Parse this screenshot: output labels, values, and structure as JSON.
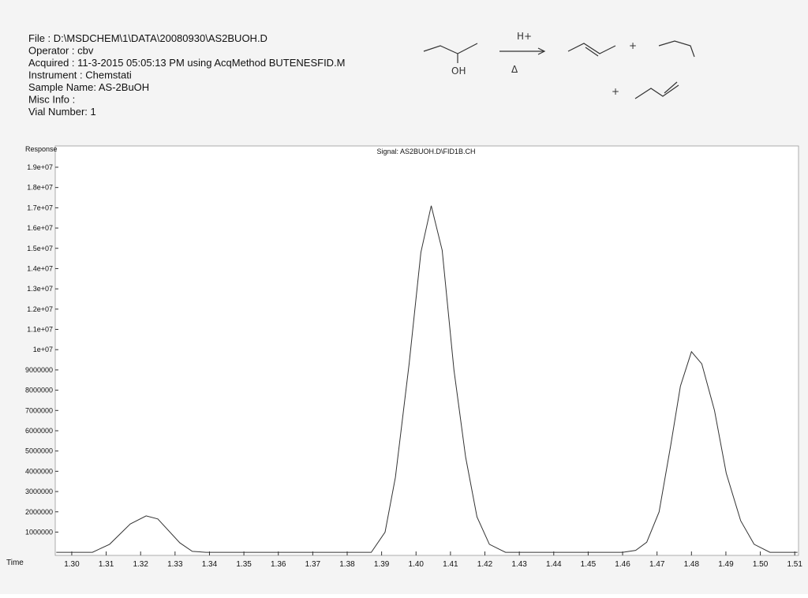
{
  "header": {
    "lines": [
      "File    : D:\\MSDCHEM\\1\\DATA\\20080930\\AS2BUOH.D",
      "Operator  : cbv",
      "Acquired  : 11-3-2015 05:05:13 PM using AcqMethod BUTENESFID.M",
      "Instrument :  Chemstati",
      "Sample Name: AS-2BuOH",
      "Misc Info  :",
      "Vial Number: 1"
    ]
  },
  "reaction": {
    "catalyst": "H+",
    "heat": "Δ",
    "substituent": "OH",
    "plus": [
      "+",
      "+"
    ]
  },
  "chart_data": {
    "type": "line",
    "title": "Signal: AS2BUOH.D\\FID1B.CH",
    "ylabel": "Response",
    "xlabel": "Time",
    "color": "#333333",
    "x": [
      1.2955,
      1.302,
      1.306,
      1.311,
      1.317,
      1.3216,
      1.325,
      1.3314,
      1.335,
      1.339,
      1.385,
      1.387,
      1.391,
      1.394,
      1.398,
      1.4014,
      1.4044,
      1.4076,
      1.411,
      1.4144,
      1.4177,
      1.4213,
      1.426,
      1.46,
      1.4638,
      1.467,
      1.4706,
      1.474,
      1.4768,
      1.48,
      1.483,
      1.4867,
      1.4901,
      1.4943,
      1.4982,
      1.5028,
      1.5108
    ],
    "values": [
      0,
      0,
      0,
      400000,
      1400000,
      1800000,
      1650000,
      470000,
      50000,
      0,
      0,
      0,
      1000000,
      3700000,
      9300000,
      14800000,
      17100000,
      14900000,
      9000000,
      4700000,
      1750000,
      400000,
      0,
      0,
      100000,
      500000,
      2000000,
      5300000,
      8200000,
      9900000,
      9300000,
      7000000,
      3900000,
      1560000,
      400000,
      0,
      0
    ],
    "xlim": [
      1.2952,
      1.5111
    ],
    "ylim": [
      -150000,
      20050000
    ],
    "xticks": [
      {
        "value": 1.3,
        "label": "1.30"
      },
      {
        "value": 1.31,
        "label": "1.31"
      },
      {
        "value": 1.32,
        "label": "1.32"
      },
      {
        "value": 1.33,
        "label": "1.33"
      },
      {
        "value": 1.34,
        "label": "1.34"
      },
      {
        "value": 1.35,
        "label": "1.35"
      },
      {
        "value": 1.36,
        "label": "1.36"
      },
      {
        "value": 1.37,
        "label": "1.37"
      },
      {
        "value": 1.38,
        "label": "1.38"
      },
      {
        "value": 1.39,
        "label": "1.39"
      },
      {
        "value": 1.4,
        "label": "1.40"
      },
      {
        "value": 1.41,
        "label": "1.41"
      },
      {
        "value": 1.42,
        "label": "1.42"
      },
      {
        "value": 1.43,
        "label": "1.43"
      },
      {
        "value": 1.44,
        "label": "1.44"
      },
      {
        "value": 1.45,
        "label": "1.45"
      },
      {
        "value": 1.46,
        "label": "1.46"
      },
      {
        "value": 1.47,
        "label": "1.47"
      },
      {
        "value": 1.48,
        "label": "1.48"
      },
      {
        "value": 1.49,
        "label": "1.49"
      },
      {
        "value": 1.5,
        "label": "1.50"
      },
      {
        "value": 1.51,
        "label": "1.51"
      }
    ],
    "yticks": [
      1000000,
      2000000,
      3000000,
      4000000,
      5000000,
      6000000,
      7000000,
      8000000,
      9000000,
      {
        "value": 10000000,
        "label": "1e+07"
      },
      {
        "value": 11000000,
        "label": "1.1e+07"
      },
      {
        "value": 12000000,
        "label": "1.2e+07"
      },
      {
        "value": 13000000,
        "label": "1.3e+07"
      },
      {
        "value": 14000000,
        "label": "1.4e+07"
      },
      {
        "value": 15000000,
        "label": "1.5e+07"
      },
      {
        "value": 16000000,
        "label": "1.6e+07"
      },
      {
        "value": 17000000,
        "label": "1.7e+07"
      },
      {
        "value": 18000000,
        "label": "1.8e+07"
      },
      {
        "value": 19000000,
        "label": "1.9e+07"
      }
    ]
  }
}
